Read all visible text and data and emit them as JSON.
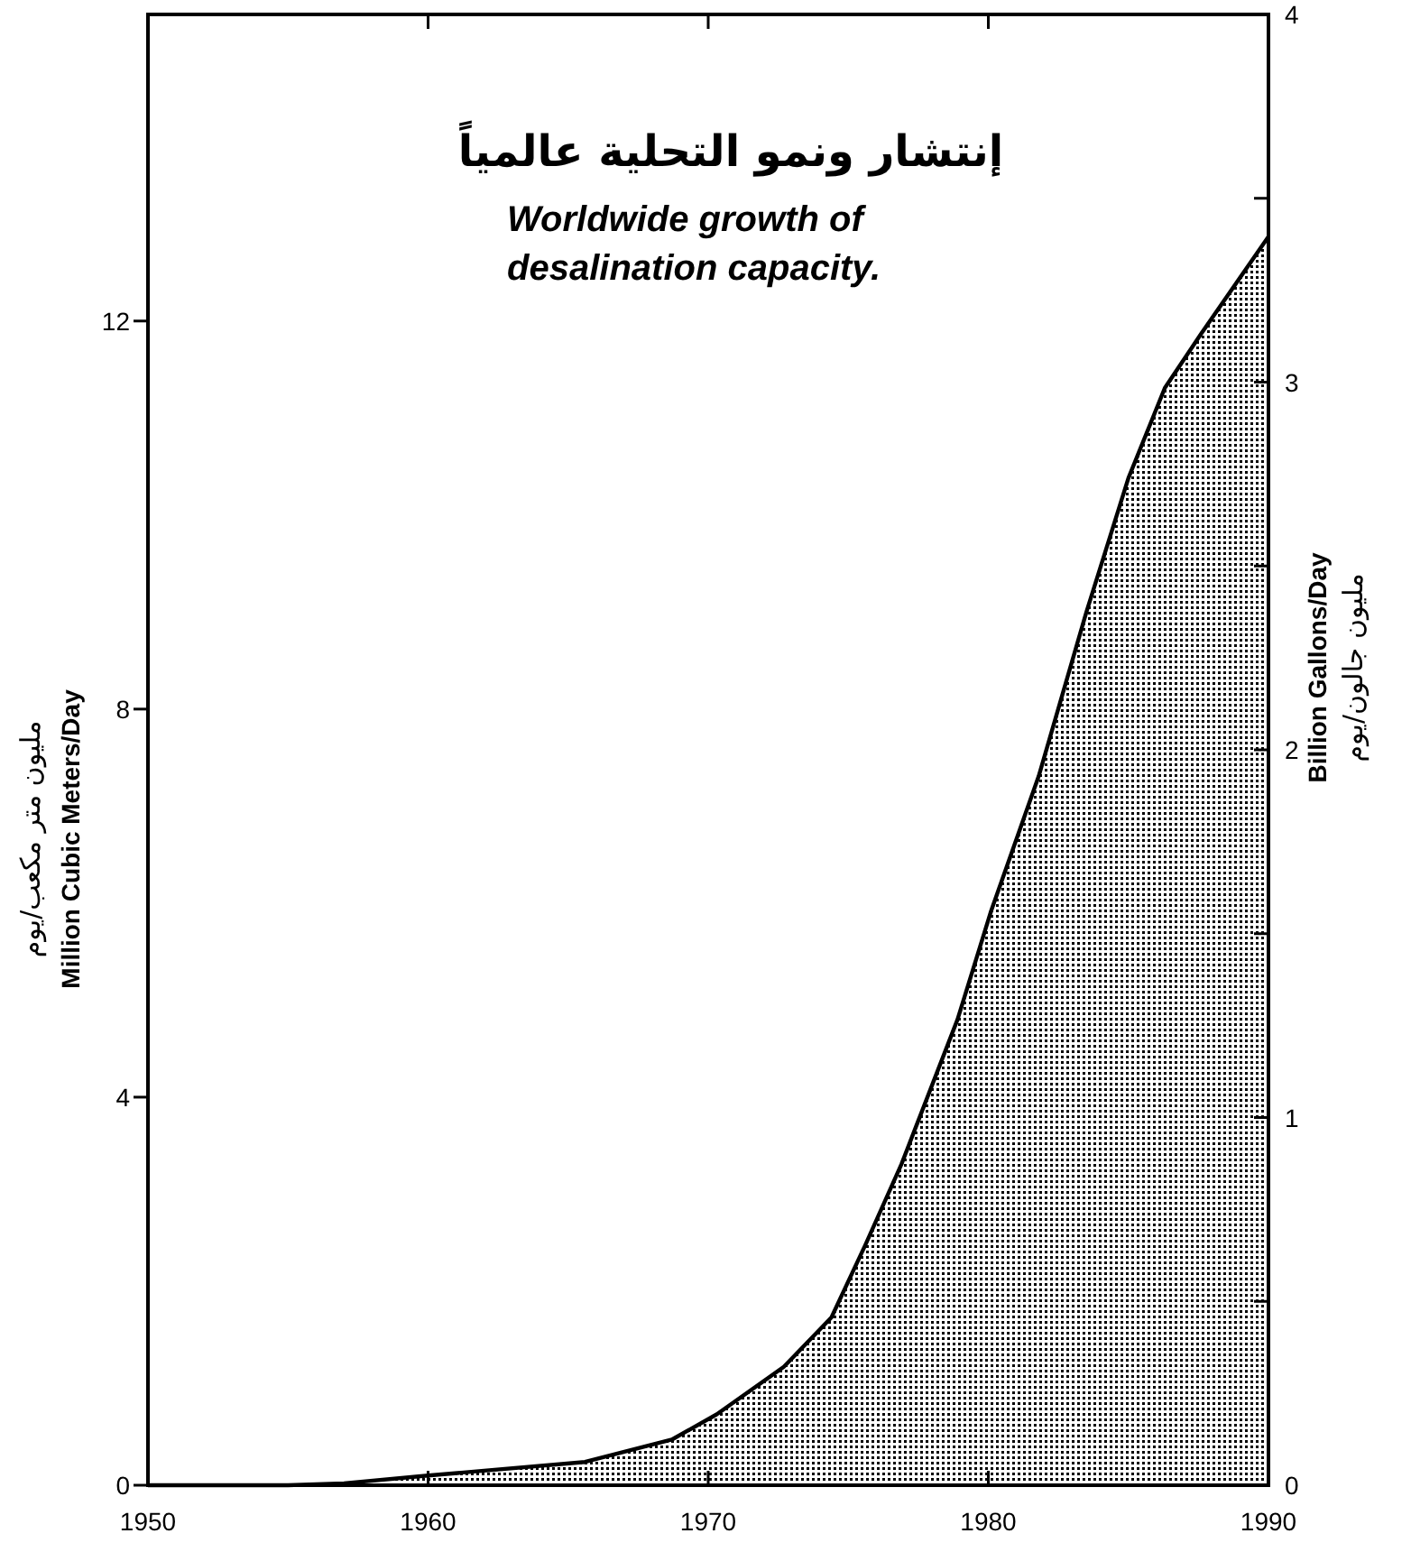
{
  "chart_data": {
    "type": "area",
    "title": "إنتشار ونمو التحلية عالمياً",
    "subtitle": "Worldwide growth of desalination capacity.",
    "ylabel": "Million Cubic Meters/Day",
    "y2label": "Billion Gallons/Day",
    "annotations": [
      "مليون متر مكعب/يوم",
      "مليون جالون/يوم"
    ],
    "x": [
      1950,
      1955,
      1957,
      1960,
      1962,
      1965.6,
      1968.7,
      1970.3,
      1972.7,
      1974.4,
      1975.6,
      1976.9,
      1978.9,
      1980.1,
      1981.8,
      1983.5,
      1985,
      1986.3,
      1987.6,
      1990
    ],
    "values": [
      0,
      0,
      0.02,
      0.1,
      0.15,
      0.24,
      0.47,
      0.73,
      1.22,
      1.73,
      2.47,
      3.31,
      4.8,
      5.92,
      7.31,
      9.0,
      10.38,
      11.31,
      11.87,
      12.87
    ],
    "color": "#000000",
    "xlim": [
      1950,
      1990
    ],
    "xticks": [
      1950,
      1960,
      1970,
      1980,
      1990
    ],
    "ylim": [
      0,
      15.16
    ],
    "yticks": [
      0,
      4,
      8,
      12
    ],
    "y2lim": [
      0,
      4
    ],
    "y2ticks": [
      0,
      {
        "value": 0.5,
        "label": null
      },
      1,
      {
        "value": 1.5,
        "label": null
      },
      2,
      {
        "value": 2.5,
        "label": null
      },
      3,
      {
        "value": 3.5,
        "label": null
      },
      4
    ],
    "grid": false
  }
}
